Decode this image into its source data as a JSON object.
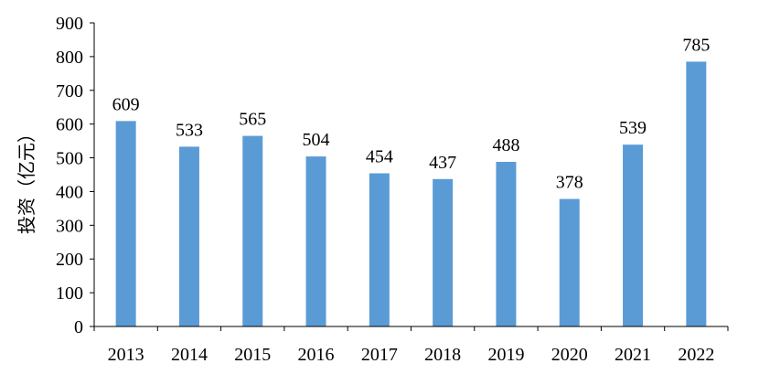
{
  "chart_data": {
    "type": "bar",
    "categories": [
      "2013",
      "2014",
      "2015",
      "2016",
      "2017",
      "2018",
      "2019",
      "2020",
      "2021",
      "2022"
    ],
    "values": [
      609,
      533,
      565,
      504,
      454,
      437,
      488,
      378,
      539,
      785
    ],
    "data_labels": [
      "609",
      "533",
      "565",
      "504",
      "454",
      "437",
      "488",
      "378",
      "539",
      "785"
    ],
    "title": "",
    "xlabel": "",
    "ylabel": "投资（亿元）",
    "ylim": [
      0,
      900
    ],
    "yticks": [
      "0",
      "100",
      "200",
      "300",
      "400",
      "500",
      "600",
      "700",
      "800",
      "900"
    ],
    "grid": false,
    "legend": "none",
    "bar_color": "#5B9BD5",
    "axis_color": "#000000"
  }
}
